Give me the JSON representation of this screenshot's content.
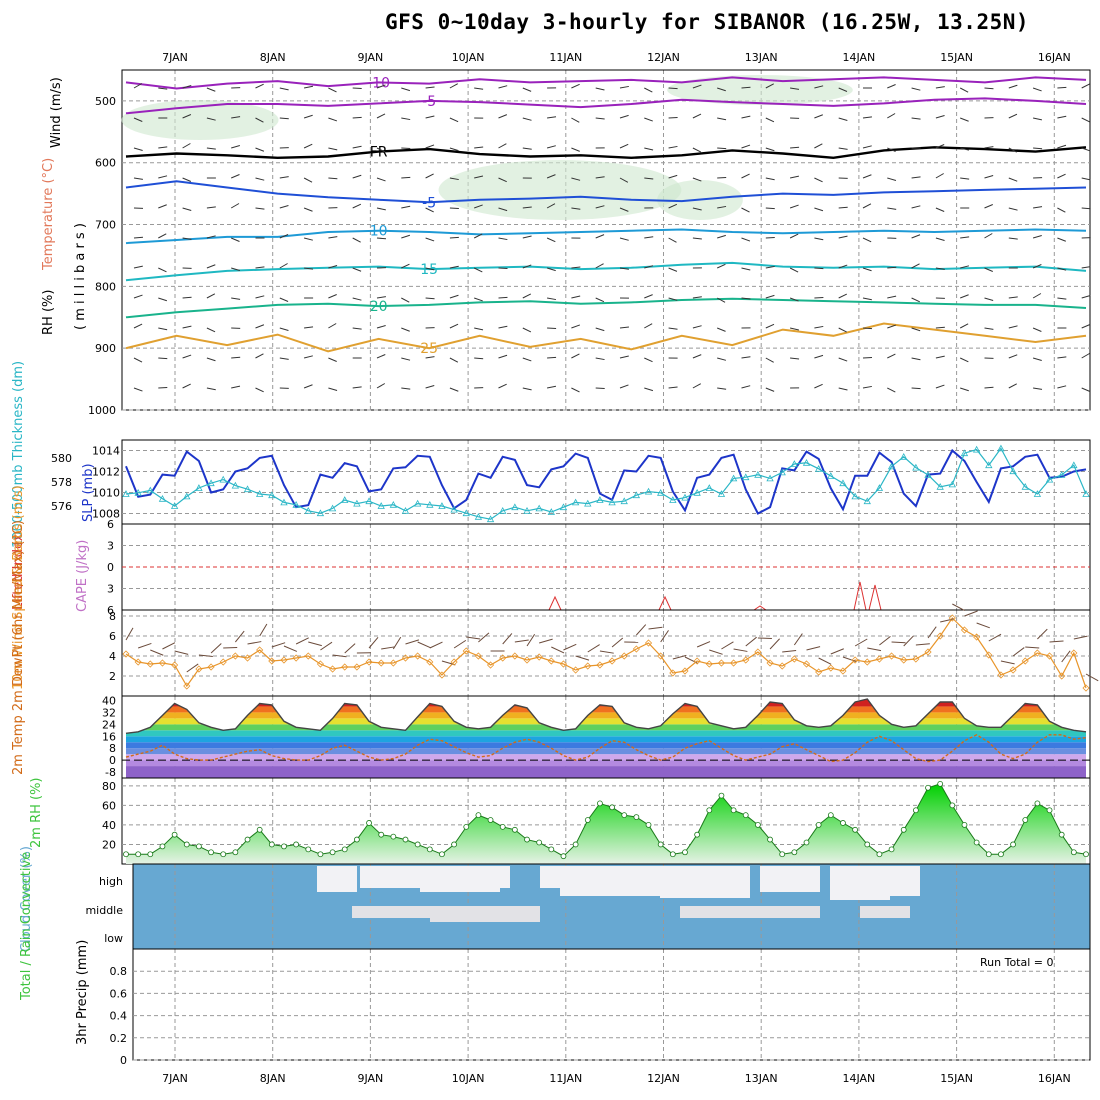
{
  "title": "GFS 0~10day 3-hourly for SIBANOR (16.25W, 13.25N)",
  "colors": {
    "grid": "#999999",
    "temp_purple": "#9922bb",
    "temp_black": "#000000",
    "temp_blue": "#1f4fd6",
    "temp_lightblue": "#1e9ad6",
    "temp_cyan": "#1fb8c2",
    "temp_teal": "#19b38c",
    "temp_orange": "#e0a030",
    "temp_darkorange": "#d26b18",
    "temp_magenta": "#d0157a",
    "slp": "#1d35c9",
    "thickness": "#2ab6c6",
    "cape": "#dd3333",
    "wind10": "#e8952a",
    "rh2m_fill": "#3ec43e",
    "cloud": "#67a8d2",
    "cloud_gap": "#f2f2f5"
  },
  "date_labels": [
    "7JAN",
    "8JAN",
    "9JAN",
    "10JAN",
    "11JAN",
    "12JAN",
    "13JAN",
    "14JAN",
    "15JAN",
    "16JAN"
  ],
  "run_total": "Run Total = 0",
  "chart_data": [
    {
      "panel": "upper_air",
      "type": "contour",
      "ylabels": {
        "wind": "Wind (m/s)",
        "temp": "Temperature (°C)",
        "rh": "RH (%)",
        "pressure": "( m i l l i b a r s )"
      },
      "y_ticks": [
        500,
        600,
        700,
        800,
        900,
        1000
      ],
      "ylim": [
        450,
        1000
      ],
      "isotherms": [
        {
          "label": "-10",
          "pressure": [
            470,
            480,
            472,
            468,
            476,
            470,
            472,
            465,
            470,
            468,
            466,
            470,
            462,
            468,
            465,
            462,
            466,
            470,
            462,
            466
          ],
          "color": "temp_purple"
        },
        {
          "label": "-5",
          "pressure": [
            520,
            512,
            505,
            505,
            508,
            504,
            500,
            502,
            506,
            510,
            505,
            498,
            502,
            505,
            508,
            504,
            498,
            496,
            500,
            505
          ],
          "color": "temp_purple"
        },
        {
          "label": "FR",
          "pressure": [
            590,
            585,
            588,
            592,
            590,
            582,
            578,
            586,
            590,
            588,
            592,
            588,
            580,
            585,
            592,
            580,
            575,
            578,
            582,
            575
          ],
          "color": "temp_black"
        },
        {
          "label": "-5",
          "pressure": [
            640,
            630,
            640,
            650,
            656,
            660,
            664,
            660,
            658,
            655,
            660,
            662,
            655,
            650,
            652,
            648,
            646,
            644,
            642,
            640
          ],
          "color": "temp_blue"
        },
        {
          "label": "10",
          "pressure": [
            730,
            725,
            720,
            720,
            712,
            710,
            712,
            716,
            714,
            712,
            710,
            708,
            712,
            714,
            712,
            710,
            712,
            710,
            708,
            710
          ],
          "color": "temp_lightblue"
        },
        {
          "label": "15",
          "pressure": [
            790,
            782,
            775,
            772,
            770,
            768,
            772,
            770,
            768,
            772,
            770,
            765,
            762,
            768,
            770,
            768,
            772,
            770,
            768,
            775
          ],
          "color": "temp_cyan"
        },
        {
          "label": "20",
          "pressure": [
            850,
            842,
            836,
            830,
            828,
            832,
            830,
            826,
            824,
            828,
            826,
            822,
            820,
            822,
            824,
            826,
            828,
            830,
            830,
            835
          ],
          "color": "temp_teal"
        },
        {
          "label": "25",
          "pressure": [
            900,
            880,
            895,
            878,
            905,
            885,
            900,
            880,
            898,
            885,
            902,
            880,
            895,
            870,
            880,
            860,
            870,
            880,
            890,
            880
          ],
          "color": "temp_orange"
        }
      ]
    },
    {
      "panel": "slp_thickness",
      "type": "line",
      "ylabel_left": "1000-500mb Thickness (dm)",
      "ylabel_right": "SLP (mb)",
      "slp_ticks": [
        1008,
        1010,
        1012,
        1014
      ],
      "thickness_ticks": [
        576,
        578,
        580
      ],
      "series": [
        {
          "name": "SLP",
          "axis": "slp",
          "color": "slp",
          "values": [
            1012.5,
            1009.6,
            1009.8,
            1011.7,
            1011.6,
            1013.9,
            1013.0,
            1010.0,
            1010.3,
            1012.0,
            1012.3,
            1013.3,
            1013.5,
            1010.7,
            1008.6,
            1008.8,
            1011.7,
            1011.4,
            1012.8,
            1012.5,
            1010.1,
            1010.3,
            1012.3,
            1012.4,
            1013.5,
            1013.4,
            1010.7,
            1008.5,
            1009.3,
            1011.8,
            1011.4,
            1013.4,
            1013.1,
            1010.7,
            1010.5,
            1012.2,
            1012.5,
            1013.7,
            1013.3,
            1009.9,
            1009.3,
            1012.1,
            1012.0,
            1013.5,
            1013.3,
            1010.1,
            1008.3,
            1011.4,
            1011.7,
            1013.3,
            1013.6,
            1010.3,
            1008.0,
            1008.6,
            1012.3,
            1012.1,
            1013.9,
            1013.2,
            1010.4,
            1008.4,
            1011.6,
            1011.6,
            1013.8,
            1012.9,
            1009.9,
            1008.7,
            1011.7,
            1011.8,
            1014.0,
            1013.0,
            1011.0,
            1009.1,
            1012.3,
            1012.5,
            1013.4,
            1013.6,
            1011.4,
            1011.5,
            1012.0,
            1012.2
          ]
        },
        {
          "name": "Thickness",
          "axis": "thickness",
          "color": "thickness",
          "values": [
            577.0,
            577.1,
            577.3,
            576.6,
            576.0,
            576.8,
            577.5,
            577.9,
            578.2,
            577.7,
            577.4,
            577.0,
            576.9,
            576.3,
            576.1,
            575.6,
            575.4,
            575.8,
            576.5,
            576.2,
            576.4,
            576.0,
            576.1,
            575.6,
            576.2,
            576.1,
            576.0,
            575.7,
            575.4,
            575.1,
            574.9,
            575.6,
            575.9,
            575.6,
            575.8,
            575.5,
            575.9,
            576.3,
            576.2,
            576.5,
            576.3,
            576.4,
            576.9,
            577.2,
            577.1,
            576.5,
            576.7,
            577.1,
            577.5,
            577.0,
            578.3,
            578.4,
            578.6,
            578.3,
            578.8,
            579.5,
            579.6,
            579.1,
            578.5,
            577.9,
            576.8,
            576.4,
            577.5,
            579.3,
            580.1,
            579.2,
            578.6,
            577.6,
            577.8,
            580.4,
            580.7,
            579.4,
            580.8,
            578.9,
            577.6,
            577.0,
            578.2,
            578.6,
            579.4,
            577.0
          ]
        }
      ]
    },
    {
      "panel": "cape_li",
      "type": "line",
      "ylabel_left": "Lifted Index",
      "ylabel_right": "CAPE (J/kg)",
      "li_ticks": [
        -6,
        -3,
        0,
        3,
        6
      ],
      "series": [
        {
          "name": "Lifted Index",
          "color": "cape",
          "values": [
            6,
            6,
            6,
            6,
            6,
            6,
            6,
            6,
            6,
            6,
            6,
            6,
            6,
            6,
            6,
            6,
            6,
            6,
            6,
            6,
            6,
            6,
            6,
            6,
            6,
            6,
            6,
            6,
            6,
            6,
            6,
            6,
            6,
            5,
            6,
            6,
            6,
            6,
            6,
            6,
            6,
            6,
            6,
            6,
            6,
            6,
            6,
            6,
            6,
            6,
            6,
            6,
            6,
            6,
            6,
            6,
            6,
            6,
            6,
            6,
            6,
            6,
            6,
            6,
            6,
            6,
            6,
            6,
            6,
            6,
            6,
            6,
            6,
            6,
            6,
            6,
            6,
            6,
            6,
            6
          ]
        }
      ]
    },
    {
      "panel": "wind10m",
      "type": "line",
      "ylabel": "10m Wind Speed & Barbs (m/s)",
      "y_ticks": [
        2,
        4,
        6,
        8
      ],
      "series": [
        {
          "name": "10m Wind Speed",
          "color": "wind10",
          "values": [
            4.2,
            3.4,
            3.2,
            3.3,
            3.1,
            1.0,
            2.7,
            2.9,
            3.4,
            4.0,
            3.8,
            4.6,
            3.5,
            3.6,
            3.8,
            4.0,
            3.2,
            2.7,
            2.9,
            2.9,
            3.4,
            3.3,
            3.3,
            3.8,
            4.0,
            3.4,
            2.1,
            3.4,
            4.5,
            4.0,
            3.1,
            3.8,
            4.0,
            3.6,
            3.9,
            3.5,
            3.2,
            2.6,
            3.0,
            3.1,
            3.5,
            4.0,
            4.7,
            5.3,
            4.0,
            2.3,
            2.5,
            3.5,
            3.2,
            3.3,
            3.3,
            3.6,
            4.4,
            3.3,
            3.0,
            3.7,
            3.2,
            2.4,
            2.8,
            2.5,
            3.6,
            3.4,
            3.7,
            4.0,
            3.6,
            3.7,
            4.4,
            6.0,
            7.8,
            6.6,
            5.9,
            4.1,
            2.1,
            2.6,
            3.5,
            4.3,
            4.0,
            2.0,
            4.3,
            0.8
          ]
        }
      ]
    },
    {
      "panel": "temp2m",
      "type": "line",
      "ylabel": "2m Temp 2m DewPt (6hr Min/Max) (°C)",
      "y_ticks": [
        -8,
        0,
        8,
        16,
        24,
        32,
        40
      ],
      "series": [
        {
          "name": "2m Temp",
          "color": "temp_black",
          "values": [
            18,
            19,
            22,
            30,
            38,
            34,
            25,
            22,
            20,
            21,
            30,
            38,
            37,
            26,
            22,
            21,
            20,
            28,
            38,
            37,
            26,
            22,
            21,
            20,
            29,
            38,
            36,
            26,
            22,
            21,
            22,
            30,
            37,
            35,
            25,
            22,
            20,
            21,
            30,
            37,
            36,
            25,
            22,
            21,
            23,
            31,
            38,
            36,
            25,
            23,
            21,
            22,
            30,
            39,
            38,
            27,
            23,
            22,
            23,
            30,
            39,
            41,
            30,
            24,
            22,
            23,
            31,
            39,
            39,
            28,
            23,
            22,
            22,
            30,
            38,
            37,
            26,
            22,
            20,
            19
          ]
        },
        {
          "name": "2m DewPt",
          "color": "temp_darkorange",
          "values": [
            2,
            4,
            6,
            10,
            4,
            1,
            0,
            0,
            2,
            4,
            6,
            7,
            3,
            1,
            0,
            0,
            3,
            8,
            10,
            6,
            2,
            0,
            1,
            4,
            10,
            14,
            13,
            9,
            5,
            2,
            3,
            8,
            12,
            14,
            12,
            8,
            3,
            0,
            2,
            8,
            13,
            12,
            7,
            3,
            0,
            2,
            8,
            11,
            13,
            8,
            3,
            0,
            2,
            4,
            9,
            11,
            7,
            3,
            -1,
            0,
            5,
            12,
            16,
            13,
            7,
            1,
            -1,
            0,
            6,
            13,
            17,
            12,
            4,
            1,
            4,
            12,
            17,
            17,
            14,
            15
          ]
        }
      ]
    },
    {
      "panel": "rh2m",
      "type": "area",
      "ylabel": "2m RH (%)",
      "y_ticks": [
        20,
        40,
        60,
        80
      ],
      "series": [
        {
          "name": "2m RH",
          "color": "rh2m_fill",
          "values": [
            10,
            10,
            10,
            18,
            30,
            20,
            18,
            12,
            10,
            12,
            25,
            35,
            20,
            18,
            20,
            15,
            10,
            12,
            15,
            25,
            42,
            30,
            28,
            25,
            20,
            15,
            10,
            20,
            38,
            50,
            45,
            38,
            35,
            25,
            22,
            15,
            8,
            20,
            45,
            62,
            58,
            50,
            48,
            40,
            20,
            10,
            12,
            30,
            55,
            70,
            55,
            50,
            40,
            25,
            10,
            12,
            22,
            40,
            50,
            42,
            35,
            20,
            10,
            15,
            35,
            55,
            78,
            82,
            60,
            40,
            22,
            10,
            10,
            20,
            45,
            62,
            55,
            30,
            12,
            10
          ]
        }
      ]
    },
    {
      "panel": "cloud",
      "type": "heatmap",
      "ylabel": "Cloud Cover (%)",
      "levels": [
        "high",
        "middle",
        "low"
      ]
    },
    {
      "panel": "precip",
      "type": "bar",
      "ylabel_left": "Total / Rain Convective",
      "ylabel_right": "3hr Precip (mm)",
      "y_ticks": [
        0,
        0.2,
        0.4,
        0.6,
        0.8
      ],
      "ylim": [
        0,
        1
      ],
      "values": []
    }
  ]
}
